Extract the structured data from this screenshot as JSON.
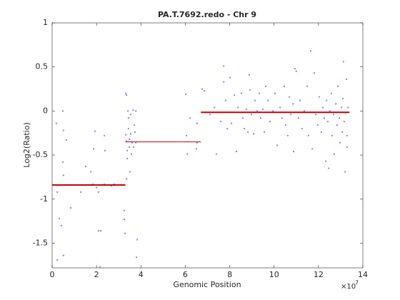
{
  "chart_data": {
    "type": "scatter",
    "title": "PA.T.7692.redo - Chr 9",
    "x_label": "Genomic Position",
    "y_label": "Log2(Ratio)",
    "x_multiplier": "×10",
    "x_exponent": "7",
    "xlim": [
      0,
      14
    ],
    "ylim": [
      -1.78,
      1
    ],
    "xticks": [
      0,
      2,
      4,
      6,
      8,
      10,
      12,
      14
    ],
    "yticks": [
      -1.5,
      -1,
      -0.5,
      0,
      0.5,
      1
    ],
    "grid": false,
    "color": "#8c8cf0",
    "x": [
      0.19,
      0.23,
      0.32,
      0.42,
      0.48,
      0.51,
      0.48,
      0.51,
      0.51,
      0.64,
      0.84,
      0.23,
      1.29,
      1.51,
      1.74,
      1.87,
      1.93,
      1.83,
      2.0,
      2.09,
      2.09,
      2.19,
      2.16,
      2.35,
      2.38,
      2.35,
      2.67,
      2.8,
      3.25,
      3.25,
      3.28,
      3.32,
      3.35,
      3.32,
      3.35,
      3.38,
      3.38,
      3.35,
      3.41,
      3.44,
      3.44,
      3.48,
      3.48,
      3.51,
      3.54,
      3.54,
      3.57,
      3.6,
      3.64,
      3.67,
      3.7,
      3.73,
      3.77,
      3.77,
      3.8,
      3.83,
      6.02,
      6.05,
      6.09,
      6.21,
      6.5,
      6.53,
      6.53,
      6.76,
      6.86,
      7.11,
      7.31,
      7.4,
      7.6,
      7.73,
      7.73,
      7.82,
      7.89,
      8.01,
      8.08,
      8.21,
      8.3,
      8.37,
      8.53,
      8.59,
      8.66,
      8.75,
      8.82,
      8.88,
      8.92,
      8.98,
      9.08,
      9.14,
      9.24,
      9.33,
      9.4,
      9.49,
      9.56,
      9.62,
      9.72,
      9.82,
      9.95,
      10.04,
      10.14,
      10.27,
      10.36,
      10.46,
      10.52,
      10.62,
      10.69,
      10.75,
      10.85,
      10.88,
      10.94,
      11.0,
      11.1,
      11.17,
      11.26,
      11.36,
      11.49,
      11.55,
      11.65,
      11.72,
      11.81,
      11.88,
      11.97,
      12.04,
      12.13,
      12.2,
      12.26,
      12.33,
      12.36,
      12.42,
      12.46,
      12.52,
      12.58,
      12.62,
      12.68,
      12.71,
      12.78,
      12.84,
      12.87,
      12.94,
      12.97,
      13.04,
      13.07,
      13.1,
      13.13,
      13.16,
      13.2,
      13.23,
      13.26,
      13.29,
      13.33,
      13.29
    ],
    "y": [
      -0.14,
      -0.92,
      -1.22,
      -1.3,
      0,
      -0.22,
      -0.58,
      -0.73,
      -1.64,
      -0.33,
      -1.1,
      -1.69,
      -0.92,
      -0.63,
      -0.69,
      -0.43,
      -0.23,
      -0.83,
      -0.87,
      -0.92,
      -1.36,
      -1.36,
      -1.77,
      -0.28,
      -0.45,
      -0.83,
      -0.85,
      -0.83,
      -1.13,
      -1.23,
      -1.39,
      0.2,
      0.18,
      -0.27,
      -0.34,
      -0.45,
      -0.54,
      -0.77,
      0,
      -0.08,
      -0.2,
      -0.32,
      -0.41,
      -0.69,
      -0.04,
      -0.26,
      -0.49,
      -0.36,
      0.01,
      -0.41,
      -0.16,
      -0.24,
      0,
      -0.36,
      -1.66,
      -1.46,
      0.19,
      -0.28,
      -0.49,
      -0.08,
      -0.43,
      -0.36,
      -0.14,
      0.25,
      0.23,
      -0.04,
      0.04,
      -0.49,
      -0.12,
      0.33,
      0.51,
      0.12,
      -0.2,
      0.38,
      -0.14,
      0.18,
      -0.46,
      0.04,
      0.2,
      -0.08,
      -0.2,
      0.02,
      -0.24,
      0.41,
      0.24,
      -0.04,
      -0.26,
      0.12,
      0,
      0.2,
      -0.08,
      0.02,
      -0.24,
      0.28,
      0.12,
      -0.12,
      0,
      0.2,
      -0.39,
      0.04,
      -0.08,
      0.28,
      -0.16,
      -0.28,
      0.16,
      -0.04,
      0.08,
      -0.46,
      0.48,
      0.45,
      -0.08,
      0.12,
      -0.2,
      0,
      0.28,
      -0.28,
      0.68,
      -0.43,
      0.43,
      -0.04,
      -0.16,
      0.16,
      -0.24,
      0.04,
      -0.08,
      -0.57,
      0.12,
      -0.12,
      -0.65,
      0,
      0.2,
      -0.28,
      -0.04,
      -0.49,
      0.08,
      -0.16,
      0.28,
      -0.08,
      -0.36,
      0.04,
      -0.24,
      0.14,
      0.56,
      -0.12,
      -0.69,
      -0.02,
      0.36,
      -0.28,
      0.04,
      -0.41
    ],
    "segment_color": "#cc0000",
    "segments": [
      {
        "x": [
          0,
          3.3
        ],
        "y": -0.84,
        "line_width": 2
      },
      {
        "x": [
          3.3,
          6.7
        ],
        "y": -0.35,
        "line_width": 1
      },
      {
        "x": [
          6.7,
          13.4
        ],
        "y": -0.015,
        "line_width": 2
      }
    ]
  }
}
